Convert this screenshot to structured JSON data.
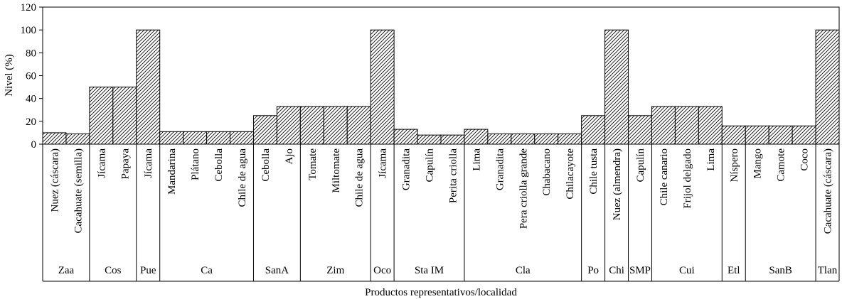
{
  "chart_data": {
    "type": "bar",
    "title": "",
    "ylabel": "Nivel (%)",
    "xlabel": "Productos representativos/localidad",
    "ylim": [
      0,
      120
    ],
    "yticks": [
      0,
      20,
      40,
      60,
      80,
      100,
      120
    ],
    "bar_fill": "diagonal-hatch",
    "groups": [
      {
        "name": "Zaa",
        "items": [
          {
            "label": "Nuez (cáscara)",
            "value": 10
          },
          {
            "label": "Cacahuate (semilla)",
            "value": 9
          }
        ]
      },
      {
        "name": "Cos",
        "items": [
          {
            "label": "Jícama",
            "value": 50
          },
          {
            "label": "Papaya",
            "value": 50
          }
        ]
      },
      {
        "name": "Pue",
        "items": [
          {
            "label": "Jícama",
            "value": 100
          }
        ]
      },
      {
        "name": "Ca",
        "items": [
          {
            "label": "Mandarina",
            "value": 11
          },
          {
            "label": "Plátano",
            "value": 11
          },
          {
            "label": "Cebolla",
            "value": 11
          },
          {
            "label": "Chile de agua",
            "value": 11
          }
        ]
      },
      {
        "name": "SanA",
        "items": [
          {
            "label": "Cebolla",
            "value": 25
          },
          {
            "label": "Ajo",
            "value": 33
          }
        ]
      },
      {
        "name": "Zim",
        "items": [
          {
            "label": "Tomate",
            "value": 33
          },
          {
            "label": "Miltomate",
            "value": 33
          },
          {
            "label": "Chile de agua",
            "value": 33
          }
        ]
      },
      {
        "name": "Oco",
        "items": [
          {
            "label": "Jícama",
            "value": 100
          }
        ]
      },
      {
        "name": "Sta IM",
        "items": [
          {
            "label": "Granadita",
            "value": 13
          },
          {
            "label": "Capulín",
            "value": 8
          },
          {
            "label": "Perita criolla",
            "value": 8
          }
        ]
      },
      {
        "name": "Cla",
        "items": [
          {
            "label": "Lima",
            "value": 13
          },
          {
            "label": "Granadita",
            "value": 9
          },
          {
            "label": "Pera criolla grande",
            "value": 9
          },
          {
            "label": "Chabacano",
            "value": 9
          },
          {
            "label": "Chilacayote",
            "value": 9
          }
        ]
      },
      {
        "name": "Po",
        "items": [
          {
            "label": "Chile tusta",
            "value": 25
          }
        ]
      },
      {
        "name": "Chi",
        "items": [
          {
            "label": "Nuez (almendra)",
            "value": 100
          }
        ]
      },
      {
        "name": "SMP",
        "items": [
          {
            "label": "Capulín",
            "value": 25
          }
        ]
      },
      {
        "name": "Cui",
        "items": [
          {
            "label": "Chile canario",
            "value": 33
          },
          {
            "label": "Frijol delgado",
            "value": 33
          },
          {
            "label": "Lima",
            "value": 33
          }
        ]
      },
      {
        "name": "Etl",
        "items": [
          {
            "label": "Níspero",
            "value": 16
          }
        ]
      },
      {
        "name": "SanB",
        "items": [
          {
            "label": "Mango",
            "value": 16
          },
          {
            "label": "Camote",
            "value": 16
          },
          {
            "label": "Coco",
            "value": 16
          }
        ]
      },
      {
        "name": "Tlan",
        "items": [
          {
            "label": "Cacahuate (cáscara)",
            "value": 100
          }
        ]
      }
    ]
  }
}
